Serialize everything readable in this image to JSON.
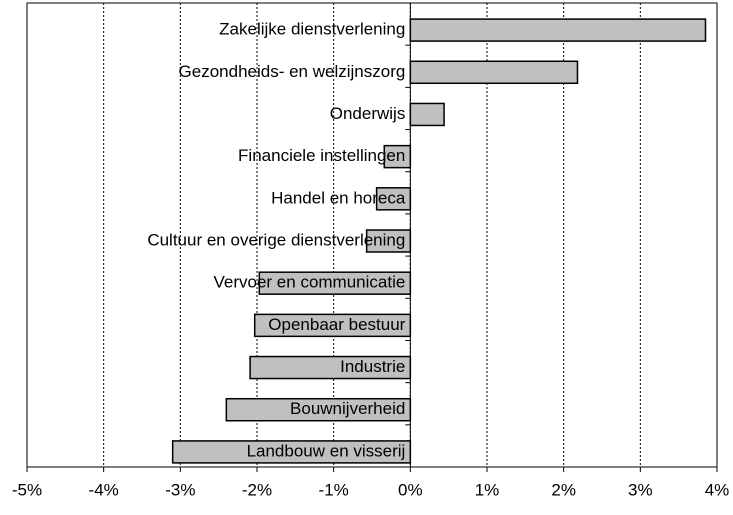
{
  "chart_data": {
    "type": "barh",
    "categories": [
      "Zakelijke dienstverlening",
      "Gezondheids- en welzijnszorg",
      "Onderwijs",
      "Financiele instellingen",
      "Handel en horeca",
      "Cultuur en overige dienstverlening",
      "Vervoer en communicatie",
      "Openbaar bestuur",
      "Industrie",
      "Bouwnijverheid",
      "Landbouw en visserij"
    ],
    "values": [
      3.85,
      2.18,
      0.44,
      -0.34,
      -0.44,
      -0.57,
      -1.97,
      -2.03,
      -2.09,
      -2.4,
      -3.1
    ],
    "color": "#c0c0c0",
    "xlim": [
      -5,
      4
    ],
    "xticks": [
      {
        "value": -5,
        "label": "-5%"
      },
      {
        "value": -4,
        "label": "-4%"
      },
      {
        "value": -3,
        "label": "-3%"
      },
      {
        "value": -2,
        "label": "-2%"
      },
      {
        "value": -1,
        "label": "-1%"
      },
      {
        "value": 0,
        "label": "0%"
      },
      {
        "value": 1,
        "label": "1%"
      },
      {
        "value": 2,
        "label": "2%"
      },
      {
        "value": 3,
        "label": "3%"
      },
      {
        "value": 4,
        "label": "4%"
      }
    ],
    "grid": true
  }
}
